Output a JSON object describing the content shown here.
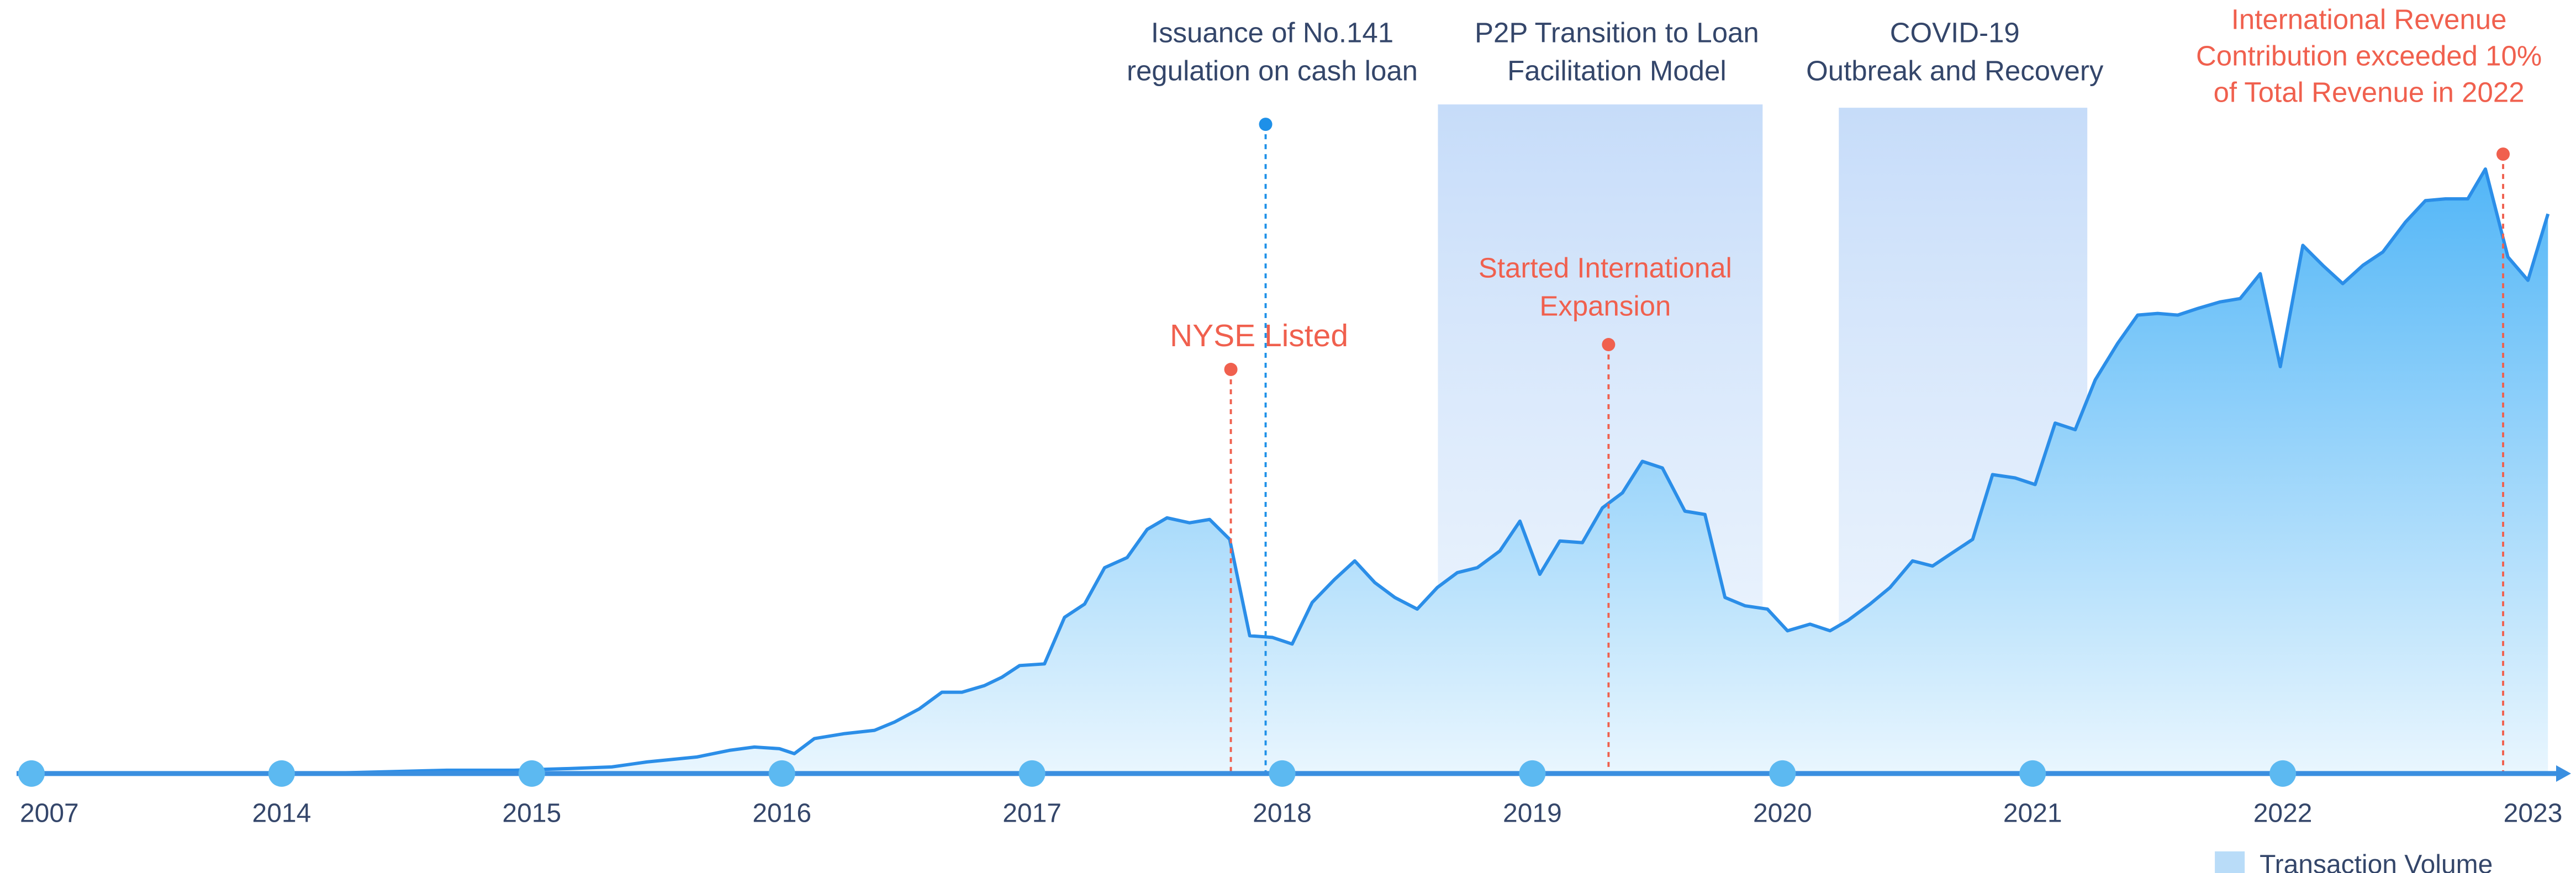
{
  "chart_data": {
    "type": "area",
    "categories": [
      "2007",
      "2014",
      "2015",
      "2016",
      "2017",
      "2018",
      "2019",
      "2020",
      "2021",
      "2022",
      "2023"
    ],
    "series": [
      {
        "name": "Transaction Volume",
        "color": "#2b8ee8",
        "x": [
          0,
          1.13,
          1.66,
          1.93,
          2.15,
          2.32,
          2.46,
          2.66,
          2.79,
          2.89,
          2.99,
          3.05,
          3.13,
          3.25,
          3.37,
          3.45,
          3.55,
          3.64,
          3.72,
          3.81,
          3.88,
          3.95,
          4.05,
          4.13,
          4.21,
          4.29,
          4.38,
          4.46,
          4.54,
          4.63,
          4.71,
          4.79,
          4.87,
          4.96,
          5.04,
          5.12,
          5.21,
          5.29,
          5.37,
          5.45,
          5.54,
          5.62,
          5.7,
          5.78,
          5.87,
          5.95,
          6.03,
          6.11,
          6.2,
          6.28,
          6.36,
          6.44,
          6.52,
          6.61,
          6.69,
          6.77,
          6.85,
          6.94,
          7.02,
          7.11,
          7.19,
          7.26,
          7.35,
          7.43,
          7.52,
          7.6,
          7.68,
          7.76,
          7.84,
          7.93,
          8.01,
          8.09,
          8.17,
          8.25,
          8.34,
          8.42,
          8.5,
          8.58,
          8.66,
          8.75,
          8.83,
          8.91,
          8.99,
          9.08,
          9.16,
          9.24,
          9.32,
          9.4,
          9.49,
          9.57,
          9.65,
          9.74,
          9.81,
          9.9,
          9.98,
          10.06
        ],
        "values": [
          0,
          0,
          2,
          2,
          3,
          4,
          7,
          10,
          14,
          16,
          15,
          12,
          21,
          24,
          26,
          31,
          39,
          49,
          49,
          53,
          58,
          65,
          66,
          94,
          102,
          124,
          130,
          147,
          154,
          151,
          153,
          141,
          83,
          82,
          78,
          103,
          117,
          128,
          115,
          106,
          99,
          112,
          121,
          124,
          134,
          152,
          120,
          140,
          139,
          160,
          169,
          188,
          184,
          158,
          156,
          106,
          101,
          99,
          86,
          90,
          86,
          92,
          102,
          112,
          128,
          125,
          133,
          141,
          180,
          178,
          174,
          211,
          207,
          237,
          259,
          276,
          277,
          276,
          280,
          284,
          286,
          301,
          245,
          318,
          306,
          295,
          306,
          314,
          332,
          345,
          346,
          346,
          364,
          311,
          297,
          337
        ]
      }
    ],
    "annotations": {
      "cash_loan": [
        "Issuance of No.141",
        "regulation on cash loan"
      ],
      "p2p": [
        "P2P Transition to Loan",
        "Facilitation Model"
      ],
      "covid": [
        "COVID-19",
        "Outbreak and Recovery"
      ],
      "international_revenue": [
        "International Revenue",
        "Contribution exceeded 10%",
        "of Total Revenue in 2022"
      ],
      "expansion": [
        "Started International",
        "Expansion"
      ],
      "nyse": [
        "NYSE Listed"
      ]
    },
    "legend": "bottom-right"
  }
}
